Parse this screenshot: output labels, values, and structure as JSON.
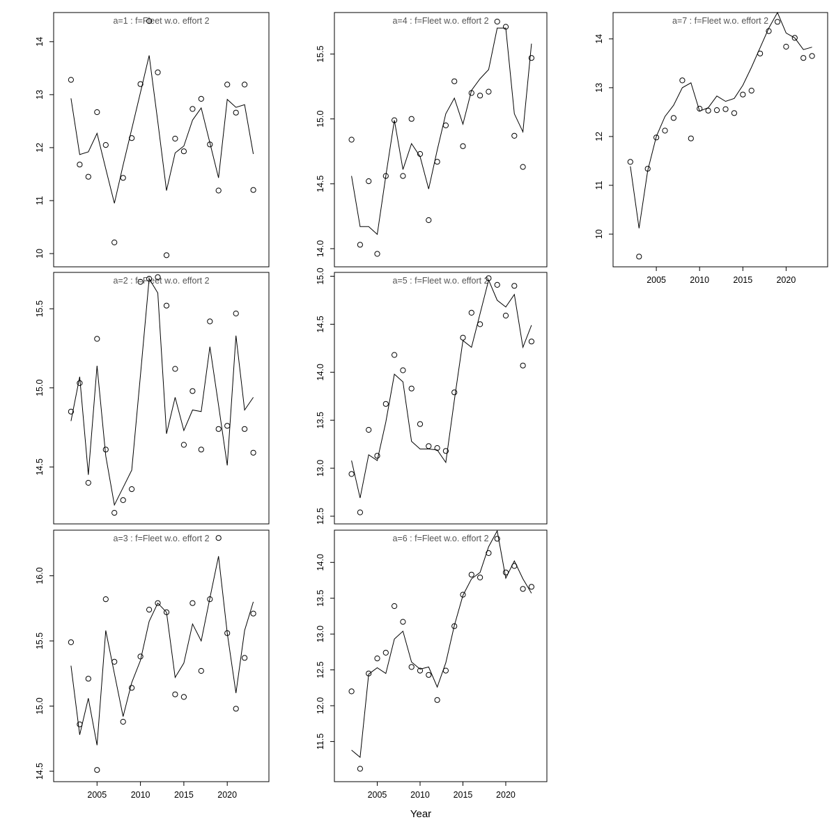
{
  "figure": {
    "xlabel": "Year",
    "background": "#ffffff",
    "line_color": "#000000",
    "marker_color": "#000000",
    "title_color": "#555555",
    "axis_color": "#000000",
    "x_tick_labels": [
      "2005",
      "2010",
      "2015",
      "2020"
    ],
    "x_tick_values": [
      2005,
      2010,
      2015,
      2020
    ],
    "xlim": [
      2000,
      2024.8
    ],
    "years": [
      2002,
      2003,
      2004,
      2005,
      2006,
      2007,
      2008,
      2009,
      2010,
      2011,
      2012,
      2013,
      2014,
      2015,
      2016,
      2017,
      2018,
      2019,
      2020,
      2021,
      2022,
      2023
    ]
  },
  "chart_data": [
    {
      "type": "line",
      "id": "a1",
      "title": "a=1 : f=Fleet w.o. effort 2",
      "xlabel": "Year",
      "ylim": [
        9.75,
        14.55
      ],
      "ytick_values": [
        10,
        11,
        12,
        13,
        14
      ],
      "ytick_labels": [
        "10",
        "11",
        "12",
        "13",
        "14"
      ],
      "series": [
        {
          "name": "observed",
          "style": "points",
          "values": [
            13.28,
            11.68,
            11.45,
            12.67,
            12.05,
            10.21,
            11.43,
            12.18,
            13.2,
            14.39,
            13.42,
            9.97,
            12.17,
            11.93,
            12.73,
            12.92,
            12.06,
            11.19,
            13.19,
            12.66,
            13.19,
            11.2
          ]
        },
        {
          "name": "fitted",
          "style": "line",
          "values": [
            12.93,
            11.87,
            11.92,
            12.27,
            11.6,
            10.95,
            11.67,
            12.35,
            13.04,
            13.74,
            12.49,
            11.19,
            11.9,
            12.03,
            12.52,
            12.75,
            12.09,
            11.43,
            12.91,
            12.76,
            12.81,
            11.88
          ]
        }
      ]
    },
    {
      "type": "line",
      "id": "a2",
      "title": "a=2 : f=Fleet w.o. effort 2",
      "xlabel": "Year",
      "ylim": [
        14.14,
        15.73
      ],
      "ytick_values": [
        14.5,
        15.0,
        15.5
      ],
      "ytick_labels": [
        "14.5",
        "15.0",
        "15.5"
      ],
      "series": [
        {
          "name": "observed",
          "style": "points",
          "values": [
            14.85,
            15.03,
            14.4,
            15.31,
            14.61,
            14.21,
            14.29,
            14.36,
            15.67,
            15.69,
            15.7,
            15.52,
            15.12,
            14.64,
            14.98,
            14.61,
            15.42,
            14.74,
            14.76,
            15.47,
            14.74,
            14.59
          ]
        },
        {
          "name": "fitted",
          "style": "line",
          "values": [
            14.79,
            15.07,
            14.45,
            15.14,
            14.57,
            14.26,
            14.37,
            14.48,
            15.08,
            15.69,
            15.6,
            14.71,
            14.94,
            14.73,
            14.86,
            14.85,
            15.26,
            14.89,
            14.51,
            15.33,
            14.86,
            14.94
          ]
        }
      ]
    },
    {
      "type": "line",
      "id": "a3",
      "title": "a=3 : f=Fleet w.o. effort 2",
      "xlabel": "Year",
      "ylim": [
        14.42,
        16.35
      ],
      "ytick_values": [
        14.5,
        15.0,
        15.5,
        16.0
      ],
      "ytick_labels": [
        "14.5",
        "15.0",
        "15.5",
        "16.0"
      ],
      "series": [
        {
          "name": "observed",
          "style": "points",
          "values": [
            15.49,
            14.86,
            15.21,
            14.51,
            15.82,
            15.34,
            14.88,
            15.14,
            15.38,
            15.74,
            15.79,
            15.72,
            15.09,
            15.07,
            15.79,
            15.27,
            15.82,
            16.29,
            15.56,
            14.98,
            15.37,
            15.71
          ]
        },
        {
          "name": "fitted",
          "style": "line",
          "values": [
            15.31,
            14.78,
            15.06,
            14.7,
            15.58,
            15.25,
            14.92,
            15.18,
            15.35,
            15.65,
            15.79,
            15.72,
            15.22,
            15.33,
            15.63,
            15.5,
            15.83,
            16.15,
            15.56,
            15.1,
            15.58,
            15.8
          ]
        }
      ]
    },
    {
      "type": "line",
      "id": "a4",
      "title": "a=4 : f=Fleet w.o. effort 2",
      "xlabel": "Year",
      "ylim": [
        13.86,
        15.82
      ],
      "ytick_values": [
        14.0,
        14.5,
        15.0,
        15.5
      ],
      "ytick_labels": [
        "14.0",
        "14.5",
        "15.0",
        "15.5"
      ],
      "series": [
        {
          "name": "observed",
          "style": "points",
          "values": [
            14.84,
            14.03,
            14.52,
            13.96,
            14.56,
            14.99,
            14.56,
            15.0,
            14.73,
            14.22,
            14.67,
            14.95,
            15.29,
            14.79,
            15.2,
            15.18,
            15.21,
            15.75,
            15.71,
            14.87,
            14.63,
            15.47
          ]
        },
        {
          "name": "fitted",
          "style": "line",
          "values": [
            14.56,
            14.17,
            14.17,
            14.11,
            14.56,
            14.99,
            14.61,
            14.81,
            14.71,
            14.46,
            14.76,
            15.04,
            15.16,
            14.96,
            15.22,
            15.31,
            15.38,
            15.7,
            15.7,
            15.04,
            14.9,
            15.58
          ]
        }
      ]
    },
    {
      "type": "line",
      "id": "a5",
      "title": "a=5 : f=Fleet w.o. effort 2",
      "xlabel": "Year",
      "ylim": [
        12.42,
        15.04
      ],
      "ytick_values": [
        12.5,
        13.0,
        13.5,
        14.0,
        14.5,
        15.0
      ],
      "ytick_labels": [
        "12.5",
        "13.0",
        "13.5",
        "14.0",
        "14.5",
        "15.0"
      ],
      "series": [
        {
          "name": "observed",
          "style": "points",
          "values": [
            12.94,
            12.54,
            13.4,
            13.13,
            13.67,
            14.18,
            14.02,
            13.83,
            13.46,
            13.23,
            13.21,
            13.18,
            13.79,
            14.36,
            14.62,
            14.5,
            14.98,
            14.91,
            14.59,
            14.9,
            14.07,
            14.32
          ]
        },
        {
          "name": "fitted",
          "style": "line",
          "values": [
            13.08,
            12.69,
            13.14,
            13.08,
            13.48,
            13.98,
            13.9,
            13.28,
            13.2,
            13.2,
            13.19,
            13.06,
            13.71,
            14.33,
            14.26,
            14.61,
            14.96,
            14.75,
            14.68,
            14.81,
            14.26,
            14.49
          ]
        }
      ]
    },
    {
      "type": "line",
      "id": "a6",
      "title": "a=6 : f=Fleet w.o. effort 2",
      "xlabel": "Year",
      "ylim": [
        10.94,
        14.45
      ],
      "ytick_values": [
        11.5,
        12.0,
        12.5,
        13.0,
        13.5,
        14.0
      ],
      "ytick_labels": [
        "11.5",
        "12.0",
        "12.5",
        "13.0",
        "13.5",
        "14.0"
      ],
      "series": [
        {
          "name": "observed",
          "style": "points",
          "values": [
            12.2,
            11.12,
            12.45,
            12.66,
            12.74,
            13.39,
            13.17,
            12.54,
            12.49,
            12.43,
            12.08,
            12.49,
            13.11,
            13.55,
            13.83,
            13.79,
            14.13,
            14.33,
            13.86,
            13.95,
            13.63,
            13.66
          ]
        },
        {
          "name": "fitted",
          "style": "line",
          "values": [
            11.38,
            11.28,
            12.44,
            12.53,
            12.45,
            12.93,
            13.04,
            12.61,
            12.51,
            12.54,
            12.26,
            12.6,
            13.12,
            13.54,
            13.77,
            13.86,
            14.22,
            14.44,
            13.78,
            14.02,
            13.77,
            13.57
          ]
        }
      ]
    },
    {
      "type": "line",
      "id": "a7",
      "title": "a=7 : f=Fleet w.o. effort 2",
      "xlabel": "Year",
      "ylim": [
        9.33,
        14.54
      ],
      "ytick_values": [
        10,
        11,
        12,
        13,
        14
      ],
      "ytick_labels": [
        "10",
        "11",
        "12",
        "13",
        "14"
      ],
      "series": [
        {
          "name": "observed",
          "style": "points",
          "values": [
            11.48,
            9.54,
            11.34,
            11.98,
            12.12,
            12.38,
            13.15,
            11.96,
            12.57,
            12.53,
            12.54,
            12.56,
            12.48,
            12.86,
            12.94,
            13.7,
            14.16,
            14.35,
            13.84,
            14.02,
            13.61,
            13.65
          ]
        },
        {
          "name": "fitted",
          "style": "line",
          "values": [
            11.39,
            10.12,
            11.3,
            12.0,
            12.41,
            12.64,
            13.0,
            13.1,
            12.52,
            12.59,
            12.83,
            12.72,
            12.78,
            13.05,
            13.42,
            13.82,
            14.22,
            14.54,
            14.12,
            14.02,
            13.78,
            13.83
          ]
        }
      ]
    }
  ]
}
